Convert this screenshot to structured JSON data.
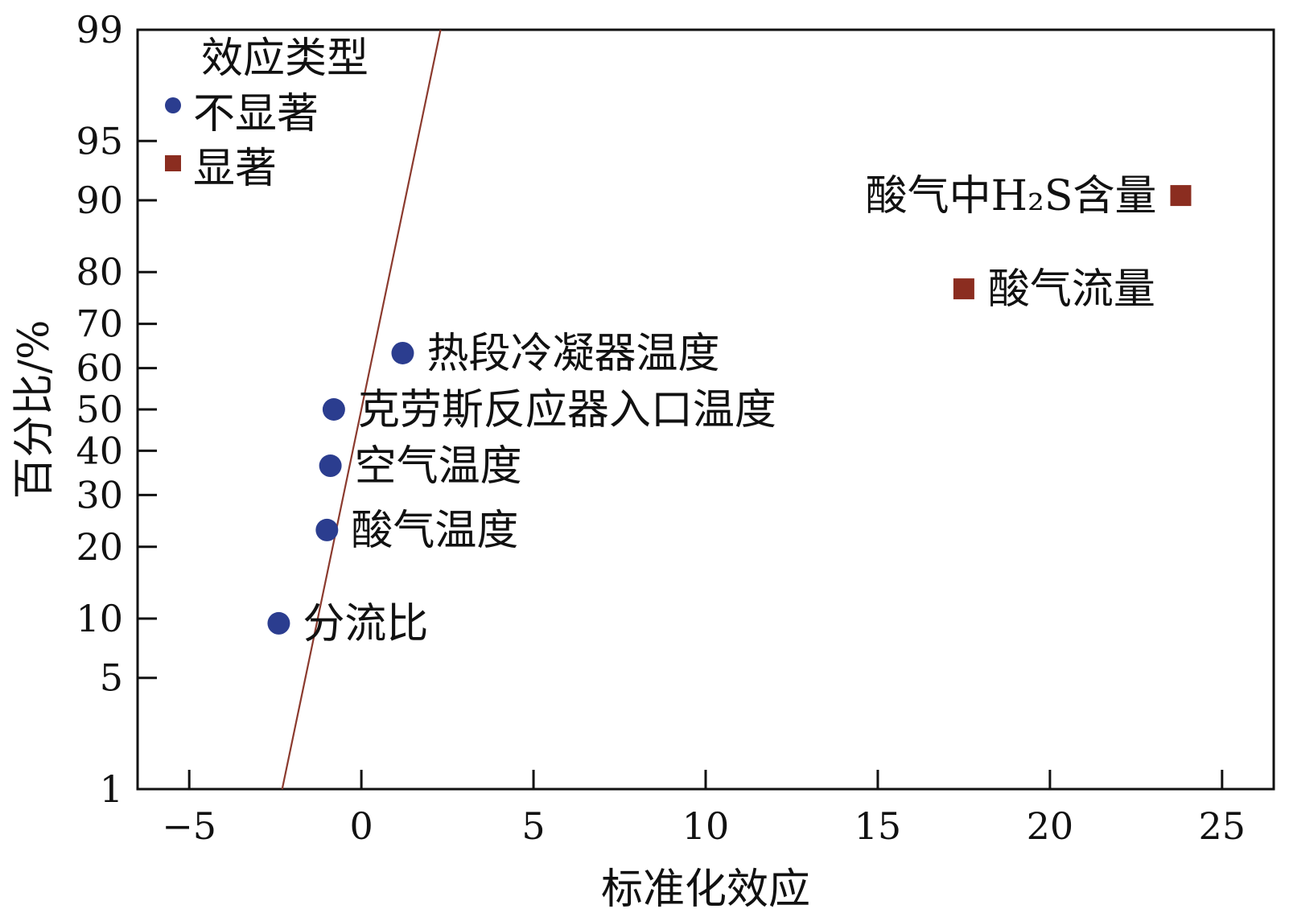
{
  "chart_data": {
    "type": "scatter",
    "title": "",
    "xlabel": "标准化效应",
    "ylabel": "百分比/%",
    "xlim": [
      -6.5,
      26.5
    ],
    "x_ticks": [
      -5,
      0,
      5,
      10,
      15,
      20,
      25
    ],
    "x_tick_labels": [
      "−5",
      "0",
      "5",
      "10",
      "15",
      "20",
      "25"
    ],
    "y_scale": "normal-probability",
    "ylim": [
      1,
      99
    ],
    "y_ticks": [
      1,
      5,
      10,
      20,
      30,
      40,
      50,
      60,
      70,
      80,
      90,
      95,
      99
    ],
    "y_tick_labels": [
      "1",
      "5",
      "10",
      "20",
      "30",
      "40",
      "50",
      "60",
      "70",
      "80",
      "90",
      "95",
      "99"
    ],
    "grid": false,
    "legend": {
      "title": "效应类型",
      "position": "top-left",
      "entries": [
        {
          "label": "不显著",
          "marker": "circle",
          "color": "#2b3d8f"
        },
        {
          "label": "显著",
          "marker": "square",
          "color": "#8b2d20"
        }
      ]
    },
    "reference_line": {
      "color": "#8b3a2e",
      "points": [
        {
          "x": -2.3,
          "y": 1
        },
        {
          "x": 2.3,
          "y": 99
        }
      ]
    },
    "series": [
      {
        "name": "不显著",
        "marker": "circle",
        "color": "#2b3d8f",
        "points": [
          {
            "x": -2.4,
            "y": 9.5,
            "label": "分流比"
          },
          {
            "x": -1.0,
            "y": 23,
            "label": "酸气温度"
          },
          {
            "x": -0.9,
            "y": 36.5,
            "label": "空气温度"
          },
          {
            "x": -0.8,
            "y": 50,
            "label": "克劳斯反应器入口温度"
          },
          {
            "x": 1.2,
            "y": 63.5,
            "label": "热段冷凝器温度"
          }
        ]
      },
      {
        "name": "显著",
        "marker": "square",
        "color": "#8b2d20",
        "points": [
          {
            "x": 17.5,
            "y": 77,
            "label": "酸气流量"
          },
          {
            "x": 23.8,
            "y": 90.5,
            "label": "酸气中H₂S含量"
          }
        ]
      }
    ]
  }
}
